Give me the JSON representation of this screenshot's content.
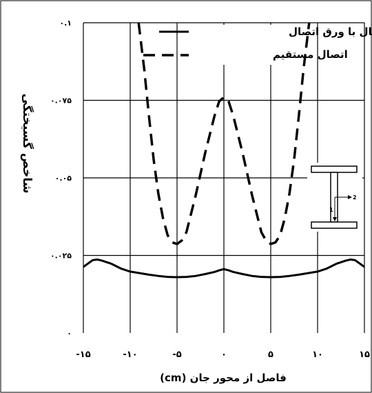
{
  "chart_data": {
    "type": "line",
    "xlabel": "فاصل از محور جان (cm)",
    "ylabel": "شاخص گسیختگی",
    "xlim": [
      -15,
      15
    ],
    "ylim": [
      0,
      0.1
    ],
    "x_ticks": [
      -15,
      -10,
      -5,
      0,
      5,
      10,
      15
    ],
    "x_tick_labels": [
      "-۱۵",
      "-۱۰",
      "-۵",
      "۰",
      "۵",
      "۱۰",
      "۱۵"
    ],
    "y_ticks": [
      0,
      0.025,
      0.05,
      0.075,
      0.1
    ],
    "y_tick_labels": [
      "۰",
      "۰.۰۲۵",
      "۰.۰۵",
      "۰.۰۷۵",
      "۰.۱"
    ],
    "grid": true,
    "legend_position": "top-right",
    "series": [
      {
        "name": "اتصال با ورق اتصال",
        "style": "solid",
        "x": [
          -15,
          -14,
          -13.5,
          -13,
          -12,
          -11,
          -10,
          -9,
          -8,
          -7,
          -6,
          -5,
          -4,
          -3,
          -2,
          -1,
          -0.5,
          0,
          0.5,
          1,
          2,
          3,
          4,
          5,
          6,
          7,
          8,
          9,
          10,
          11,
          12,
          13,
          13.5,
          14,
          15
        ],
        "y": [
          0.0213,
          0.0235,
          0.0237,
          0.0233,
          0.0223,
          0.0208,
          0.0198,
          0.0193,
          0.0188,
          0.0184,
          0.0181,
          0.018,
          0.0181,
          0.0184,
          0.019,
          0.0197,
          0.0202,
          0.0206,
          0.0202,
          0.0197,
          0.019,
          0.0184,
          0.0181,
          0.018,
          0.0181,
          0.0184,
          0.0188,
          0.0193,
          0.0198,
          0.0208,
          0.0223,
          0.0233,
          0.0237,
          0.0235,
          0.0213
        ]
      },
      {
        "name": "اتصال مستقیم",
        "style": "dashed",
        "x": [
          -9.1,
          -8.5,
          -8,
          -7.5,
          -7,
          -6.5,
          -6,
          -5.5,
          -5,
          -4.5,
          -4,
          -3,
          -2,
          -1,
          -0.5,
          0,
          0.5,
          1,
          2,
          3,
          4,
          4.5,
          5,
          5.5,
          6,
          6.5,
          7,
          7.5,
          8,
          8.5,
          9.1
        ],
        "y": [
          0.1,
          0.085,
          0.07,
          0.056,
          0.045,
          0.037,
          0.0315,
          0.0292,
          0.0287,
          0.0298,
          0.0325,
          0.0445,
          0.058,
          0.07,
          0.0747,
          0.076,
          0.0747,
          0.07,
          0.058,
          0.0445,
          0.0325,
          0.0298,
          0.0287,
          0.0292,
          0.0315,
          0.037,
          0.045,
          0.056,
          0.07,
          0.085,
          0.1
        ]
      }
    ],
    "inset_labels": [
      "1",
      "2"
    ]
  }
}
